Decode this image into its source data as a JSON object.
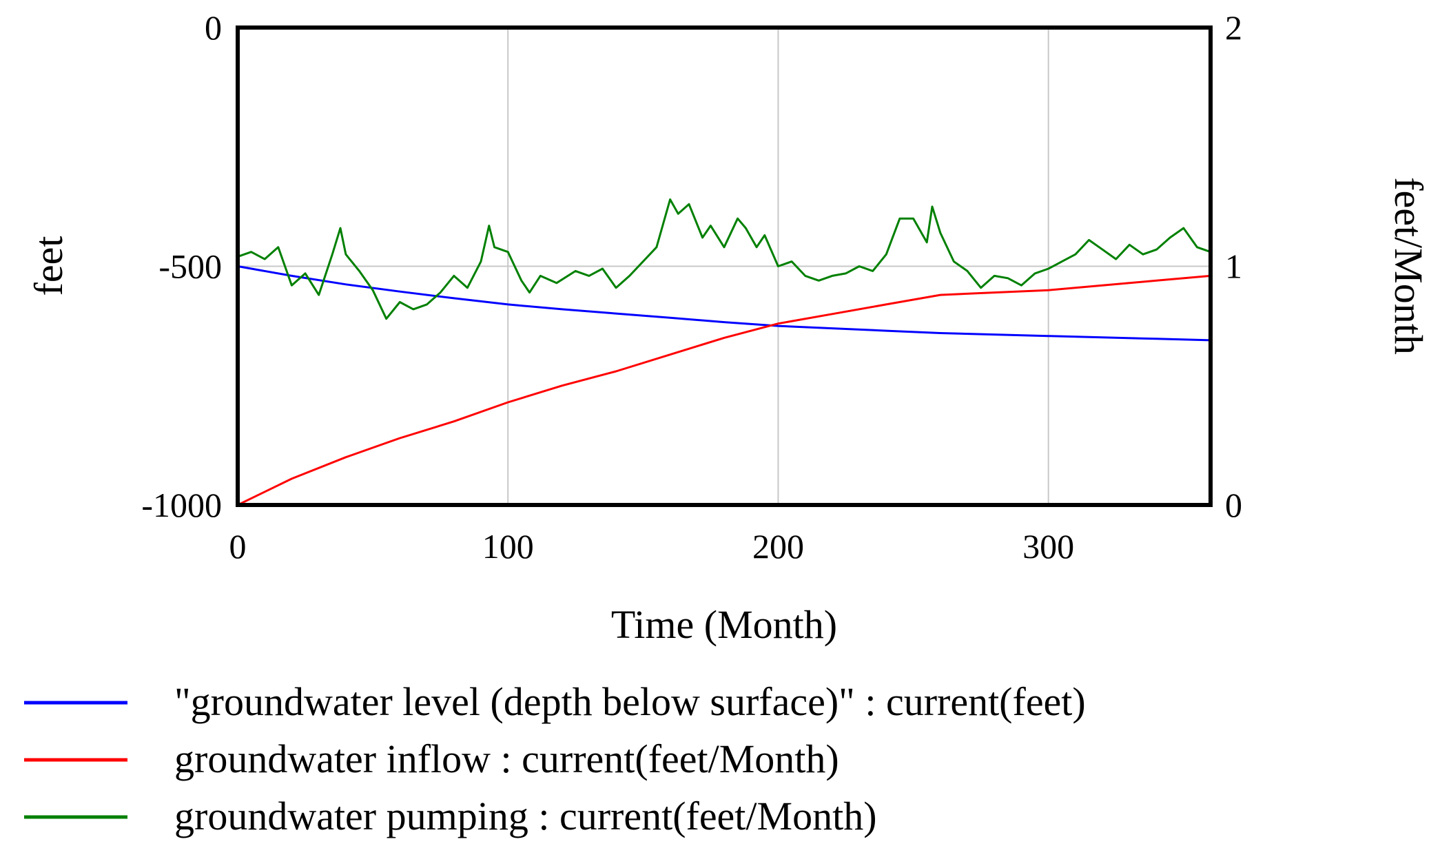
{
  "chart_data": {
    "type": "line",
    "title": "",
    "xlabel": "Time (Month)",
    "ylabel_left": "feet",
    "ylabel_right": "feet/Month",
    "xlim": [
      0,
      360
    ],
    "ylim_left": [
      -1000,
      0
    ],
    "ylim_right": [
      0,
      2
    ],
    "grid": true,
    "x_ticks": [
      {
        "value": 0,
        "label": "0"
      },
      {
        "value": 100,
        "label": "100"
      },
      {
        "value": 200,
        "label": "200"
      },
      {
        "value": 300,
        "label": "300"
      }
    ],
    "y_left_ticks": [
      {
        "value": 0,
        "label": "0"
      },
      {
        "value": -500,
        "label": "-500"
      },
      {
        "value": -1000,
        "label": "-1000"
      }
    ],
    "y_right_ticks": [
      {
        "value": 2,
        "label": "2"
      },
      {
        "value": 1,
        "label": "1"
      },
      {
        "value": 0,
        "label": "0"
      }
    ],
    "series": [
      {
        "name": "\"groundwater level (depth below surface)\" : current(feet)",
        "axis": "left",
        "color": "#0000ff",
        "x": [
          0,
          20,
          40,
          60,
          80,
          100,
          120,
          140,
          160,
          180,
          200,
          220,
          240,
          260,
          280,
          300,
          320,
          340,
          360
        ],
        "values": [
          -500,
          -520,
          -538,
          -553,
          -567,
          -580,
          -590,
          -599,
          -608,
          -617,
          -625,
          -630,
          -635,
          -640,
          -643,
          -646,
          -649,
          -652,
          -655
        ]
      },
      {
        "name": "groundwater inflow : current(feet/Month)",
        "axis": "right",
        "color": "#ff0000",
        "x": [
          0,
          20,
          40,
          60,
          80,
          100,
          120,
          140,
          160,
          180,
          200,
          220,
          240,
          260,
          280,
          300,
          320,
          340,
          360
        ],
        "values": [
          0,
          0.11,
          0.2,
          0.28,
          0.35,
          0.43,
          0.5,
          0.56,
          0.63,
          0.7,
          0.76,
          0.8,
          0.84,
          0.88,
          0.89,
          0.9,
          0.92,
          0.94,
          0.96
        ]
      },
      {
        "name": "groundwater pumping : current(feet/Month)",
        "axis": "right",
        "color": "#008000",
        "x": [
          0,
          5,
          10,
          15,
          20,
          25,
          30,
          35,
          38,
          40,
          45,
          50,
          55,
          60,
          65,
          70,
          75,
          80,
          85,
          90,
          93,
          95,
          100,
          105,
          108,
          112,
          118,
          125,
          130,
          135,
          140,
          145,
          150,
          155,
          160,
          163,
          167,
          172,
          175,
          180,
          185,
          188,
          192,
          195,
          200,
          205,
          210,
          215,
          220,
          225,
          230,
          235,
          240,
          245,
          250,
          255,
          257,
          260,
          265,
          270,
          275,
          280,
          285,
          290,
          295,
          300,
          305,
          310,
          315,
          320,
          325,
          330,
          335,
          340,
          345,
          350,
          355,
          360
        ],
        "values": [
          1.04,
          1.06,
          1.03,
          1.08,
          0.92,
          0.97,
          0.88,
          1.05,
          1.16,
          1.05,
          0.98,
          0.9,
          0.78,
          0.85,
          0.82,
          0.84,
          0.89,
          0.96,
          0.91,
          1.02,
          1.17,
          1.08,
          1.06,
          0.94,
          0.89,
          0.96,
          0.93,
          0.98,
          0.96,
          0.99,
          0.91,
          0.96,
          1.02,
          1.08,
          1.28,
          1.22,
          1.26,
          1.12,
          1.17,
          1.08,
          1.2,
          1.16,
          1.08,
          1.13,
          1.0,
          1.02,
          0.96,
          0.94,
          0.96,
          0.97,
          1.0,
          0.98,
          1.05,
          1.2,
          1.2,
          1.1,
          1.25,
          1.14,
          1.02,
          0.98,
          0.91,
          0.96,
          0.95,
          0.92,
          0.97,
          0.99,
          1.02,
          1.05,
          1.11,
          1.07,
          1.03,
          1.09,
          1.05,
          1.07,
          1.12,
          1.16,
          1.08,
          1.06
        ]
      }
    ],
    "legend_position": "bottom-left"
  }
}
